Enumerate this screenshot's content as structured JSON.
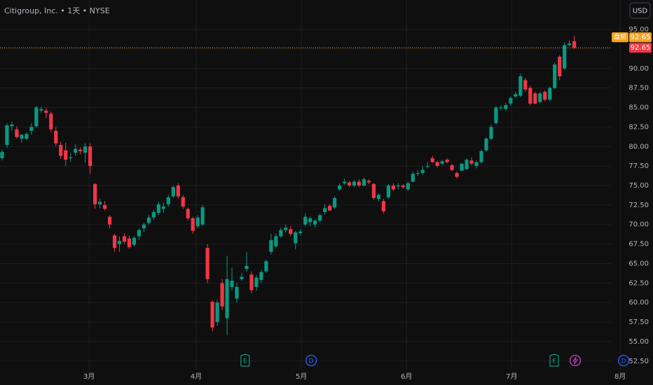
{
  "chart_data": {
    "type": "candlestick",
    "title": "Citigroup, Inc. • 1天 • NYSE",
    "currency": "USD",
    "up_color": "#089981",
    "down_color": "#f23645",
    "candles": [
      [
        78.5,
        79.6,
        78.2,
        79.3
      ],
      [
        80.2,
        83.0,
        79.8,
        82.7
      ],
      [
        82.6,
        83.2,
        82.0,
        82.8
      ],
      [
        82.2,
        82.6,
        81.0,
        81.2
      ],
      [
        81.0,
        81.6,
        80.5,
        81.5
      ],
      [
        81.0,
        81.8,
        80.8,
        81.6
      ],
      [
        82.0,
        83.0,
        81.5,
        82.5
      ],
      [
        82.6,
        85.2,
        82.4,
        85.0
      ],
      [
        84.6,
        85.1,
        84.3,
        84.8
      ],
      [
        84.6,
        84.9,
        83.6,
        84.3
      ],
      [
        84.2,
        84.5,
        81.8,
        82.2
      ],
      [
        82.0,
        82.5,
        80.0,
        80.4
      ],
      [
        80.2,
        80.6,
        78.4,
        78.8
      ],
      [
        79.5,
        80.5,
        77.5,
        78.3
      ],
      [
        78.5,
        79.2,
        78.0,
        78.6
      ],
      [
        79.2,
        80.3,
        78.8,
        79.7
      ],
      [
        79.6,
        79.9,
        79.0,
        79.4
      ],
      [
        79.2,
        80.4,
        77.9,
        80.0
      ],
      [
        80.0,
        80.4,
        76.5,
        77.5
      ],
      [
        75.2,
        75.3,
        72.0,
        72.6
      ],
      [
        72.6,
        73.3,
        72.1,
        72.9
      ],
      [
        72.5,
        73.0,
        71.8,
        72.0
      ],
      [
        71.0,
        71.2,
        69.5,
        70.0
      ],
      [
        68.6,
        68.8,
        66.5,
        67.0
      ],
      [
        67.5,
        68.5,
        66.5,
        67.9
      ],
      [
        68.5,
        68.9,
        67.5,
        67.8
      ],
      [
        68.2,
        68.6,
        66.9,
        67.1
      ],
      [
        67.4,
        68.5,
        67.2,
        68.3
      ],
      [
        68.5,
        69.5,
        68.0,
        69.3
      ],
      [
        69.5,
        70.2,
        69.0,
        70.0
      ],
      [
        70.2,
        71.2,
        70.0,
        70.9
      ],
      [
        70.9,
        71.9,
        70.6,
        71.6
      ],
      [
        71.5,
        72.9,
        71.2,
        72.6
      ],
      [
        72.0,
        72.8,
        71.5,
        72.3
      ],
      [
        72.6,
        73.8,
        72.3,
        73.5
      ],
      [
        73.6,
        75.0,
        73.4,
        74.8
      ],
      [
        75.0,
        75.3,
        73.3,
        73.6
      ],
      [
        73.5,
        73.8,
        72.0,
        72.3
      ],
      [
        72.0,
        72.2,
        70.5,
        70.8
      ],
      [
        70.8,
        71.0,
        68.8,
        69.2
      ],
      [
        69.8,
        71.2,
        69.5,
        70.9
      ],
      [
        70.0,
        72.5,
        69.8,
        72.2
      ],
      [
        67.0,
        67.5,
        62.5,
        63.0
      ],
      [
        60.1,
        60.3,
        56.3,
        56.8
      ],
      [
        57.5,
        60.4,
        57.0,
        60.0
      ],
      [
        62.5,
        63.0,
        59.0,
        59.5
      ],
      [
        58.0,
        66.0,
        55.8,
        63.0
      ],
      [
        62.0,
        64.5,
        61.5,
        62.8
      ],
      [
        60.5,
        62.5,
        60.0,
        62.0
      ],
      [
        63.0,
        63.8,
        62.8,
        63.3
      ],
      [
        64.3,
        66.5,
        64.0,
        64.7
      ],
      [
        63.6,
        64.0,
        61.2,
        61.6
      ],
      [
        62.0,
        63.5,
        61.5,
        63.2
      ],
      [
        62.9,
        64.2,
        62.5,
        63.9
      ],
      [
        64.0,
        65.5,
        63.8,
        65.3
      ],
      [
        66.5,
        68.8,
        66.2,
        68.0
      ],
      [
        67.2,
        68.8,
        67.0,
        68.5
      ],
      [
        68.5,
        69.6,
        68.3,
        69.3
      ],
      [
        69.3,
        70.0,
        69.0,
        69.6
      ],
      [
        69.4,
        69.8,
        68.5,
        68.8
      ],
      [
        67.6,
        69.2,
        66.8,
        69.0
      ],
      [
        68.9,
        69.4,
        68.6,
        69.1
      ],
      [
        70.0,
        71.4,
        69.8,
        71.0
      ],
      [
        70.3,
        71.0,
        69.8,
        70.8
      ],
      [
        70.0,
        70.7,
        69.6,
        70.5
      ],
      [
        70.5,
        71.4,
        70.2,
        71.2
      ],
      [
        71.6,
        72.6,
        71.3,
        72.1
      ],
      [
        72.4,
        72.6,
        71.7,
        71.8
      ],
      [
        72.2,
        73.6,
        72.0,
        73.4
      ],
      [
        74.5,
        75.3,
        74.3,
        75.0
      ],
      [
        75.3,
        75.9,
        75.1,
        75.5
      ],
      [
        75.4,
        75.6,
        74.8,
        75.0
      ],
      [
        75.0,
        75.7,
        74.8,
        75.5
      ],
      [
        75.5,
        75.8,
        74.8,
        75.0
      ],
      [
        75.0,
        76.0,
        74.9,
        75.8
      ],
      [
        75.6,
        75.8,
        75.2,
        75.4
      ],
      [
        75.2,
        75.3,
        73.2,
        73.4
      ],
      [
        73.3,
        74.0,
        73.0,
        73.8
      ],
      [
        73.0,
        73.3,
        71.4,
        71.7
      ],
      [
        73.5,
        75.2,
        73.3,
        75.0
      ],
      [
        75.0,
        75.3,
        74.3,
        74.5
      ],
      [
        74.9,
        75.3,
        74.5,
        75.0
      ],
      [
        75.0,
        75.2,
        74.6,
        74.8
      ],
      [
        74.5,
        75.5,
        74.3,
        75.3
      ],
      [
        75.5,
        76.8,
        75.4,
        76.5
      ],
      [
        76.5,
        77.0,
        76.2,
        76.6
      ],
      [
        76.6,
        77.5,
        76.4,
        77.0
      ],
      [
        77.4,
        78.0,
        77.2,
        77.5
      ],
      [
        78.5,
        78.8,
        77.9,
        78.0
      ],
      [
        78.0,
        78.2,
        77.3,
        77.5
      ],
      [
        77.8,
        78.3,
        77.7,
        78.1
      ],
      [
        78.3,
        78.5,
        77.8,
        78.0
      ],
      [
        77.6,
        77.8,
        76.8,
        77.0
      ],
      [
        76.6,
        76.8,
        75.9,
        76.1
      ],
      [
        76.9,
        77.9,
        76.8,
        77.8
      ],
      [
        77.1,
        78.5,
        77.0,
        78.3
      ],
      [
        78.2,
        78.6,
        77.6,
        77.8
      ],
      [
        77.5,
        78.2,
        77.2,
        78.0
      ],
      [
        78.0,
        79.6,
        77.8,
        79.4
      ],
      [
        79.5,
        81.2,
        79.3,
        81.0
      ],
      [
        81.0,
        82.8,
        80.8,
        82.5
      ],
      [
        83.0,
        85.2,
        82.8,
        85.0
      ],
      [
        84.9,
        85.3,
        84.6,
        85.0
      ],
      [
        84.8,
        85.6,
        84.6,
        85.3
      ],
      [
        85.5,
        86.4,
        85.2,
        86.2
      ],
      [
        86.4,
        87.0,
        86.2,
        86.7
      ],
      [
        86.5,
        89.3,
        86.3,
        89.0
      ],
      [
        88.5,
        88.8,
        87.0,
        87.3
      ],
      [
        87.5,
        87.8,
        85.3,
        85.5
      ],
      [
        86.8,
        87.0,
        85.4,
        85.5
      ],
      [
        85.7,
        87.0,
        85.5,
        86.8
      ],
      [
        87.0,
        87.2,
        85.8,
        86.0
      ],
      [
        86.0,
        87.7,
        85.8,
        87.5
      ],
      [
        87.5,
        90.8,
        87.3,
        90.5
      ],
      [
        91.5,
        91.7,
        88.5,
        89.0
      ],
      [
        90.0,
        93.3,
        89.8,
        93.0
      ],
      [
        93.0,
        93.6,
        92.8,
        93.2
      ],
      [
        93.5,
        94.2,
        92.5,
        92.65
      ]
    ],
    "xlim": [
      -0.43,
      133.1
    ],
    "xticks": [
      {
        "value": 17.8,
        "label": "3月"
      },
      {
        "value": 39.7,
        "label": "4月"
      },
      {
        "value": 61.2,
        "label": "5月"
      },
      {
        "value": 82.7,
        "label": "6月"
      },
      {
        "value": 104.2,
        "label": "7月"
      },
      {
        "value": 126.4,
        "label": "8月"
      }
    ],
    "ylim": [
      51.41,
      98.77
    ],
    "yticks": [
      {
        "value": 52.5,
        "label": "52.50"
      },
      {
        "value": 55,
        "label": "55.00"
      },
      {
        "value": 57.5,
        "label": "57.50"
      },
      {
        "value": 60,
        "label": "60.00"
      },
      {
        "value": 62.5,
        "label": "62.50"
      },
      {
        "value": 65,
        "label": "65.00"
      },
      {
        "value": 67.5,
        "label": "67.50"
      },
      {
        "value": 70,
        "label": "70.00"
      },
      {
        "value": 72.5,
        "label": "72.50"
      },
      {
        "value": 75,
        "label": "75.00"
      },
      {
        "value": 77.5,
        "label": "77.50"
      },
      {
        "value": 80,
        "label": "80.00"
      },
      {
        "value": 82.5,
        "label": "82.50"
      },
      {
        "value": 85,
        "label": "85.00"
      },
      {
        "value": 87.5,
        "label": "87.50"
      },
      {
        "value": 90,
        "label": "90.00"
      },
      {
        "value": 92.5,
        "label": "92.50"
      },
      {
        "value": 95,
        "label": "95.00"
      }
    ],
    "grid": true,
    "premarket": {
      "tag": "盘前",
      "value": 92.65,
      "label": "92.65"
    },
    "last_price": {
      "value": 92.65,
      "label": "92.65"
    },
    "events": [
      {
        "label": "E",
        "x": 49.7,
        "color": "#089981"
      },
      {
        "label": "D",
        "x": 63.2,
        "color": "#2962ff"
      },
      {
        "label": "E",
        "x": 112.9,
        "color": "#089981"
      },
      {
        "label": "D",
        "x": 127.1,
        "color": "#2962ff"
      }
    ]
  }
}
